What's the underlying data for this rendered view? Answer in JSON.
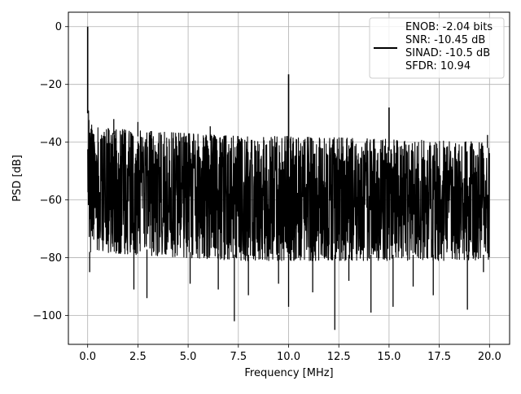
{
  "chart_data": {
    "type": "line",
    "title": "",
    "xlabel": "Frequency [MHz]",
    "ylabel": "PSD [dB]",
    "xlim": [
      -0.96,
      21.0
    ],
    "ylim": [
      -110,
      5
    ],
    "xticks": [
      0.0,
      2.5,
      5.0,
      7.5,
      10.0,
      12.5,
      15.0,
      17.5,
      20.0
    ],
    "xtick_labels": [
      "0.0",
      "2.5",
      "5.0",
      "7.5",
      "10.0",
      "12.5",
      "15.0",
      "17.5",
      "20.0"
    ],
    "yticks": [
      0,
      -20,
      -40,
      -60,
      -80,
      -100
    ],
    "ytick_labels": [
      "0",
      "−20",
      "−40",
      "−60",
      "−80",
      "−100"
    ],
    "grid": true,
    "legend_position": "top-right",
    "line_color": "#000000",
    "series": [
      {
        "legend_lines": [
          "ENOB: -2.04 bits",
          "SNR: -10.45 dB",
          "SINAD: -10.5 dB",
          "SFDR: 10.94"
        ],
        "x_range": [
          0.0,
          20.0
        ],
        "noise_envelope": {
          "x": [
            0.0,
            0.1,
            0.5,
            2.5,
            5.0,
            7.5,
            10.0,
            12.5,
            15.0,
            17.5,
            20.0
          ],
          "upper": [
            -26,
            -33,
            -35,
            -36,
            -37,
            -38,
            -38,
            -38.5,
            -39,
            -39.5,
            -40
          ],
          "lower": [
            -62,
            -80,
            -78,
            -79,
            -80,
            -81,
            -81,
            -81,
            -81,
            -81,
            -81
          ]
        },
        "peaks": [
          {
            "x": 0.0,
            "y": 0
          },
          {
            "x": 10.0,
            "y": -16.5
          },
          {
            "x": 15.0,
            "y": -28
          }
        ],
        "noise_spurs": [
          {
            "x": 1.3,
            "y": -32
          },
          {
            "x": 2.5,
            "y": -33
          },
          {
            "x": 6.1,
            "y": -34.5
          },
          {
            "x": 19.9,
            "y": -37.5
          }
        ],
        "noise_dips": [
          {
            "x": 0.1,
            "y": -85
          },
          {
            "x": 2.3,
            "y": -91
          },
          {
            "x": 2.95,
            "y": -94
          },
          {
            "x": 5.1,
            "y": -89
          },
          {
            "x": 6.5,
            "y": -91
          },
          {
            "x": 7.3,
            "y": -102
          },
          {
            "x": 8.0,
            "y": -93
          },
          {
            "x": 9.5,
            "y": -89
          },
          {
            "x": 10.0,
            "y": -97
          },
          {
            "x": 11.2,
            "y": -92
          },
          {
            "x": 12.3,
            "y": -105
          },
          {
            "x": 13.0,
            "y": -88
          },
          {
            "x": 14.1,
            "y": -99
          },
          {
            "x": 15.2,
            "y": -97
          },
          {
            "x": 16.2,
            "y": -90
          },
          {
            "x": 17.2,
            "y": -93
          },
          {
            "x": 18.9,
            "y": -98
          },
          {
            "x": 19.7,
            "y": -85
          }
        ]
      }
    ]
  }
}
